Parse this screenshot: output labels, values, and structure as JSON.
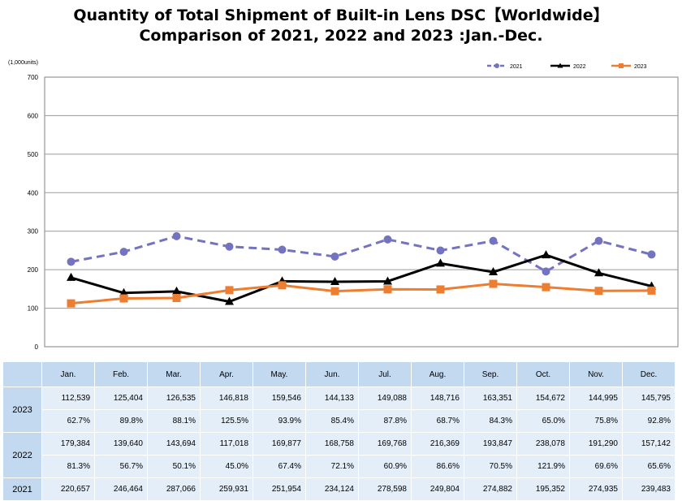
{
  "title_line1": "Quantity of Total Shipment of Built-in Lens DSC【Worldwide】",
  "title_line2": "Comparison of 2021, 2022 and 2023 :Jan.-Dec.",
  "chart_data": {
    "type": "line",
    "unit_label": "(1,000units)",
    "categories": [
      "Jan.",
      "Feb.",
      "Mar.",
      "Apr.",
      "May.",
      "Jun.",
      "Jul.",
      "Aug.",
      "Sep.",
      "Oct.",
      "Nov.",
      "Dec."
    ],
    "ylim": [
      0,
      700
    ],
    "yticks": [
      0,
      100,
      200,
      300,
      400,
      500,
      600,
      700
    ],
    "grid": true,
    "legend_position": "top-right",
    "series": [
      {
        "name": "2021",
        "color": "#7473c0",
        "style": "dashed",
        "marker": "circle",
        "values": [
          220.657,
          246.464,
          287.066,
          259.931,
          251.954,
          234.124,
          278.598,
          249.804,
          274.882,
          195.352,
          274.935,
          239.483
        ]
      },
      {
        "name": "2022",
        "color": "#000000",
        "style": "solid",
        "marker": "triangle",
        "values": [
          179.384,
          139.64,
          143.694,
          117.018,
          169.877,
          168.758,
          169.768,
          216.369,
          193.847,
          238.078,
          191.29,
          157.142
        ]
      },
      {
        "name": "2023",
        "color": "#ed7d31",
        "style": "solid",
        "marker": "square",
        "values": [
          112.539,
          125.404,
          126.535,
          146.818,
          159.546,
          144.133,
          149.088,
          148.716,
          163.351,
          154.672,
          144.995,
          145.795
        ]
      }
    ]
  },
  "table": {
    "months": [
      "Jan.",
      "Feb.",
      "Mar.",
      "Apr.",
      "May.",
      "Jun.",
      "Jul.",
      "Aug.",
      "Sep.",
      "Oct.",
      "Nov.",
      "Dec."
    ],
    "rows": [
      {
        "year": "2023",
        "values": [
          "112,539",
          "125,404",
          "126,535",
          "146,818",
          "159,546",
          "144,133",
          "149,088",
          "148,716",
          "163,351",
          "154,672",
          "144,995",
          "145,795"
        ],
        "ratios": [
          "62.7%",
          "89.8%",
          "88.1%",
          "125.5%",
          "93.9%",
          "85.4%",
          "87.8%",
          "68.7%",
          "84.3%",
          "65.0%",
          "75.8%",
          "92.8%"
        ]
      },
      {
        "year": "2022",
        "values": [
          "179,384",
          "139,640",
          "143,694",
          "117,018",
          "169,877",
          "168,758",
          "169,768",
          "216,369",
          "193,847",
          "238,078",
          "191,290",
          "157,142"
        ],
        "ratios": [
          "81.3%",
          "56.7%",
          "50.1%",
          "45.0%",
          "67.4%",
          "72.1%",
          "60.9%",
          "86.6%",
          "70.5%",
          "121.9%",
          "69.6%",
          "65.6%"
        ]
      },
      {
        "year": "2021",
        "values": [
          "220,657",
          "246,464",
          "287,066",
          "259,931",
          "251,954",
          "234,124",
          "278,598",
          "249,804",
          "274,882",
          "195,352",
          "274,935",
          "239,483"
        ]
      }
    ]
  }
}
